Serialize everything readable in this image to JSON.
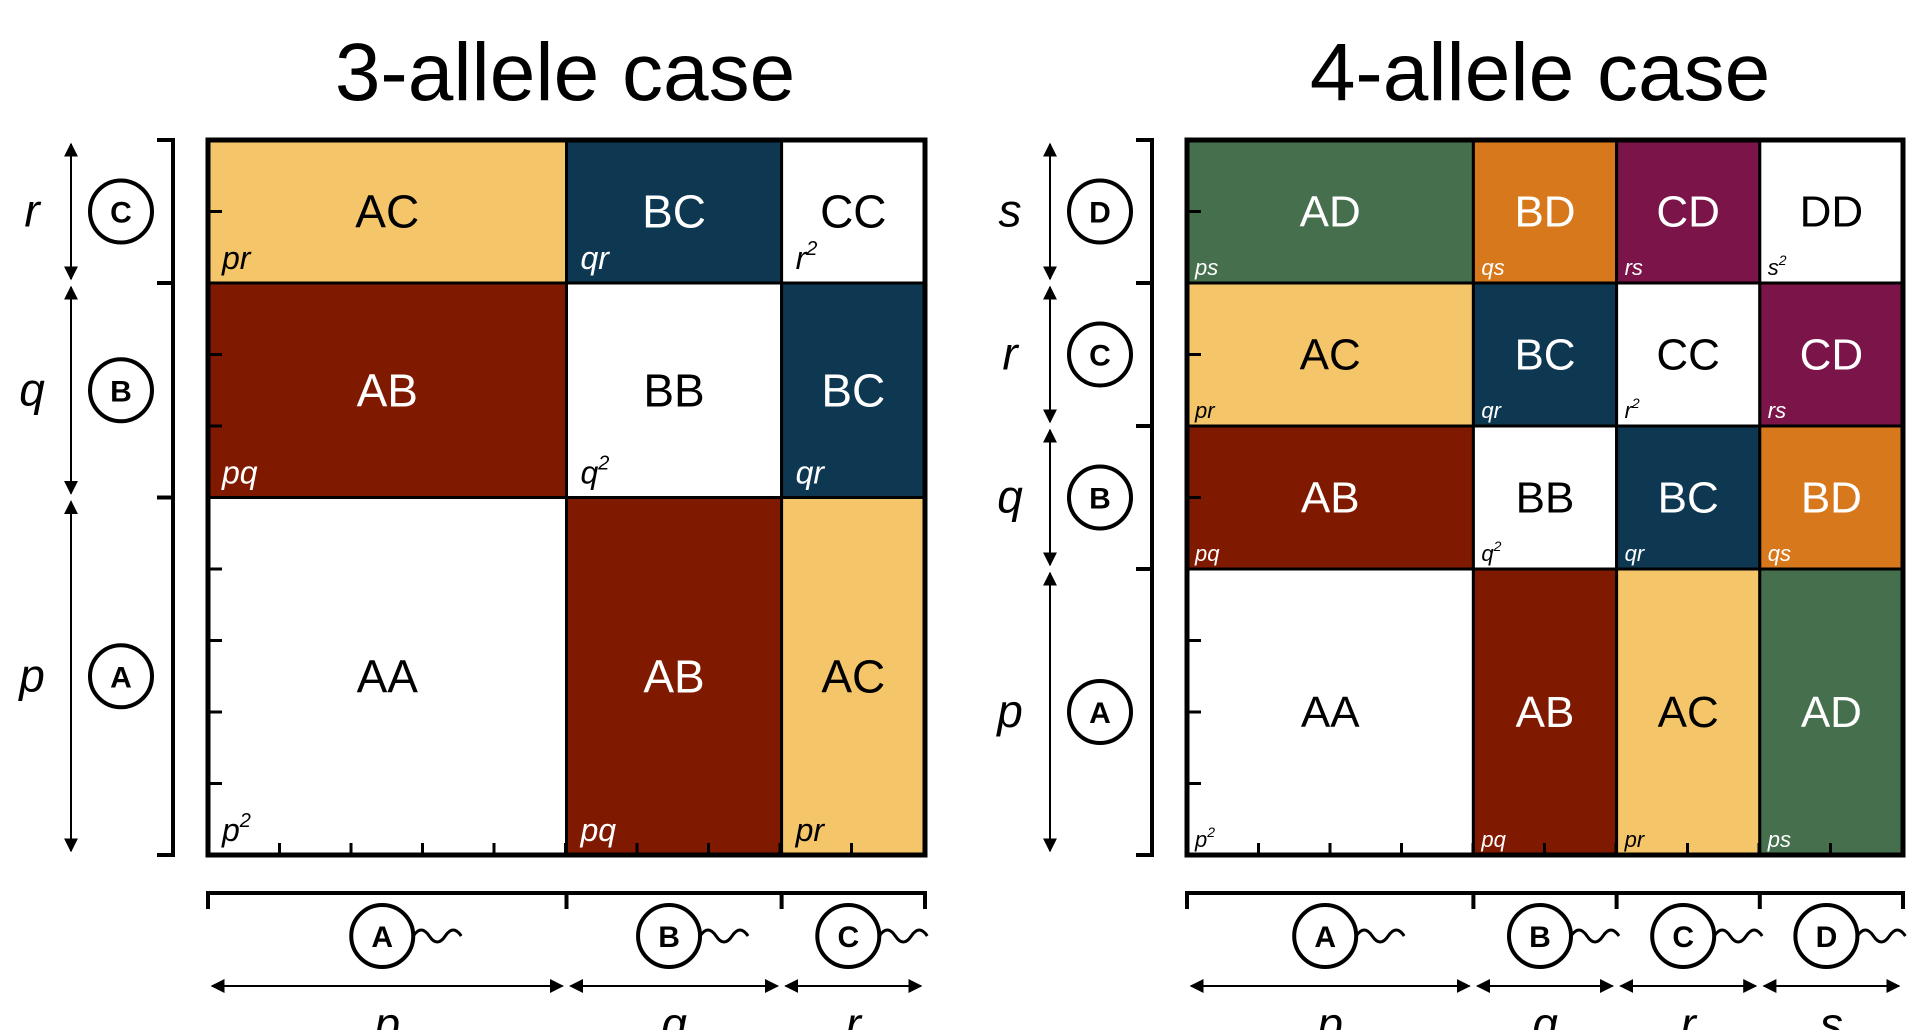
{
  "colors": {
    "AA": "#ffffff",
    "BB": "#ffffff",
    "CC": "#ffffff",
    "DD": "#ffffff",
    "AB": "#7f1a00",
    "AC": "#f5c56a",
    "BC": "#0e3752",
    "AD": "#466f4d",
    "BD": "#d8781c",
    "CD": "#7a1449"
  },
  "panel3": {
    "title": "3-allele case",
    "alleles": [
      "A",
      "B",
      "C"
    ],
    "vars": [
      "p",
      "q",
      "r"
    ],
    "freqs": [
      0.5,
      0.3,
      0.2
    ],
    "cells": [
      [
        {
          "g": "AA",
          "f": "p",
          "s": "2"
        },
        {
          "g": "AB",
          "f": "pq",
          "s": ""
        },
        {
          "g": "AC",
          "f": "pr",
          "s": ""
        }
      ],
      [
        {
          "g": "AB",
          "f": "pq",
          "s": ""
        },
        {
          "g": "BB",
          "f": "q",
          "s": "2"
        },
        {
          "g": "BC",
          "f": "qr",
          "s": ""
        }
      ],
      [
        {
          "g": "AC",
          "f": "pr",
          "s": ""
        },
        {
          "g": "BC",
          "f": "qr",
          "s": ""
        },
        {
          "g": "CC",
          "f": "r",
          "s": "2"
        }
      ]
    ]
  },
  "panel4": {
    "title": "4-allele case",
    "alleles": [
      "A",
      "B",
      "C",
      "D"
    ],
    "vars": [
      "p",
      "q",
      "r",
      "s"
    ],
    "freqs": [
      0.4,
      0.2,
      0.2,
      0.2
    ],
    "cells": [
      [
        {
          "g": "AA",
          "f": "p",
          "s": "2"
        },
        {
          "g": "AB",
          "f": "pq",
          "s": ""
        },
        {
          "g": "AC",
          "f": "pr",
          "s": ""
        },
        {
          "g": "AD",
          "f": "ps",
          "s": ""
        }
      ],
      [
        {
          "g": "AB",
          "f": "pq",
          "s": ""
        },
        {
          "g": "BB",
          "f": "q",
          "s": "2"
        },
        {
          "g": "BC",
          "f": "qr",
          "s": ""
        },
        {
          "g": "BD",
          "f": "qs",
          "s": ""
        }
      ],
      [
        {
          "g": "AC",
          "f": "pr",
          "s": ""
        },
        {
          "g": "BC",
          "f": "qr",
          "s": ""
        },
        {
          "g": "CC",
          "f": "r",
          "s": "2"
        },
        {
          "g": "CD",
          "f": "rs",
          "s": ""
        }
      ],
      [
        {
          "g": "AD",
          "f": "ps",
          "s": ""
        },
        {
          "g": "BD",
          "f": "qs",
          "s": ""
        },
        {
          "g": "CD",
          "f": "rs",
          "s": ""
        },
        {
          "g": "DD",
          "f": "s",
          "s": "2"
        }
      ]
    ]
  }
}
